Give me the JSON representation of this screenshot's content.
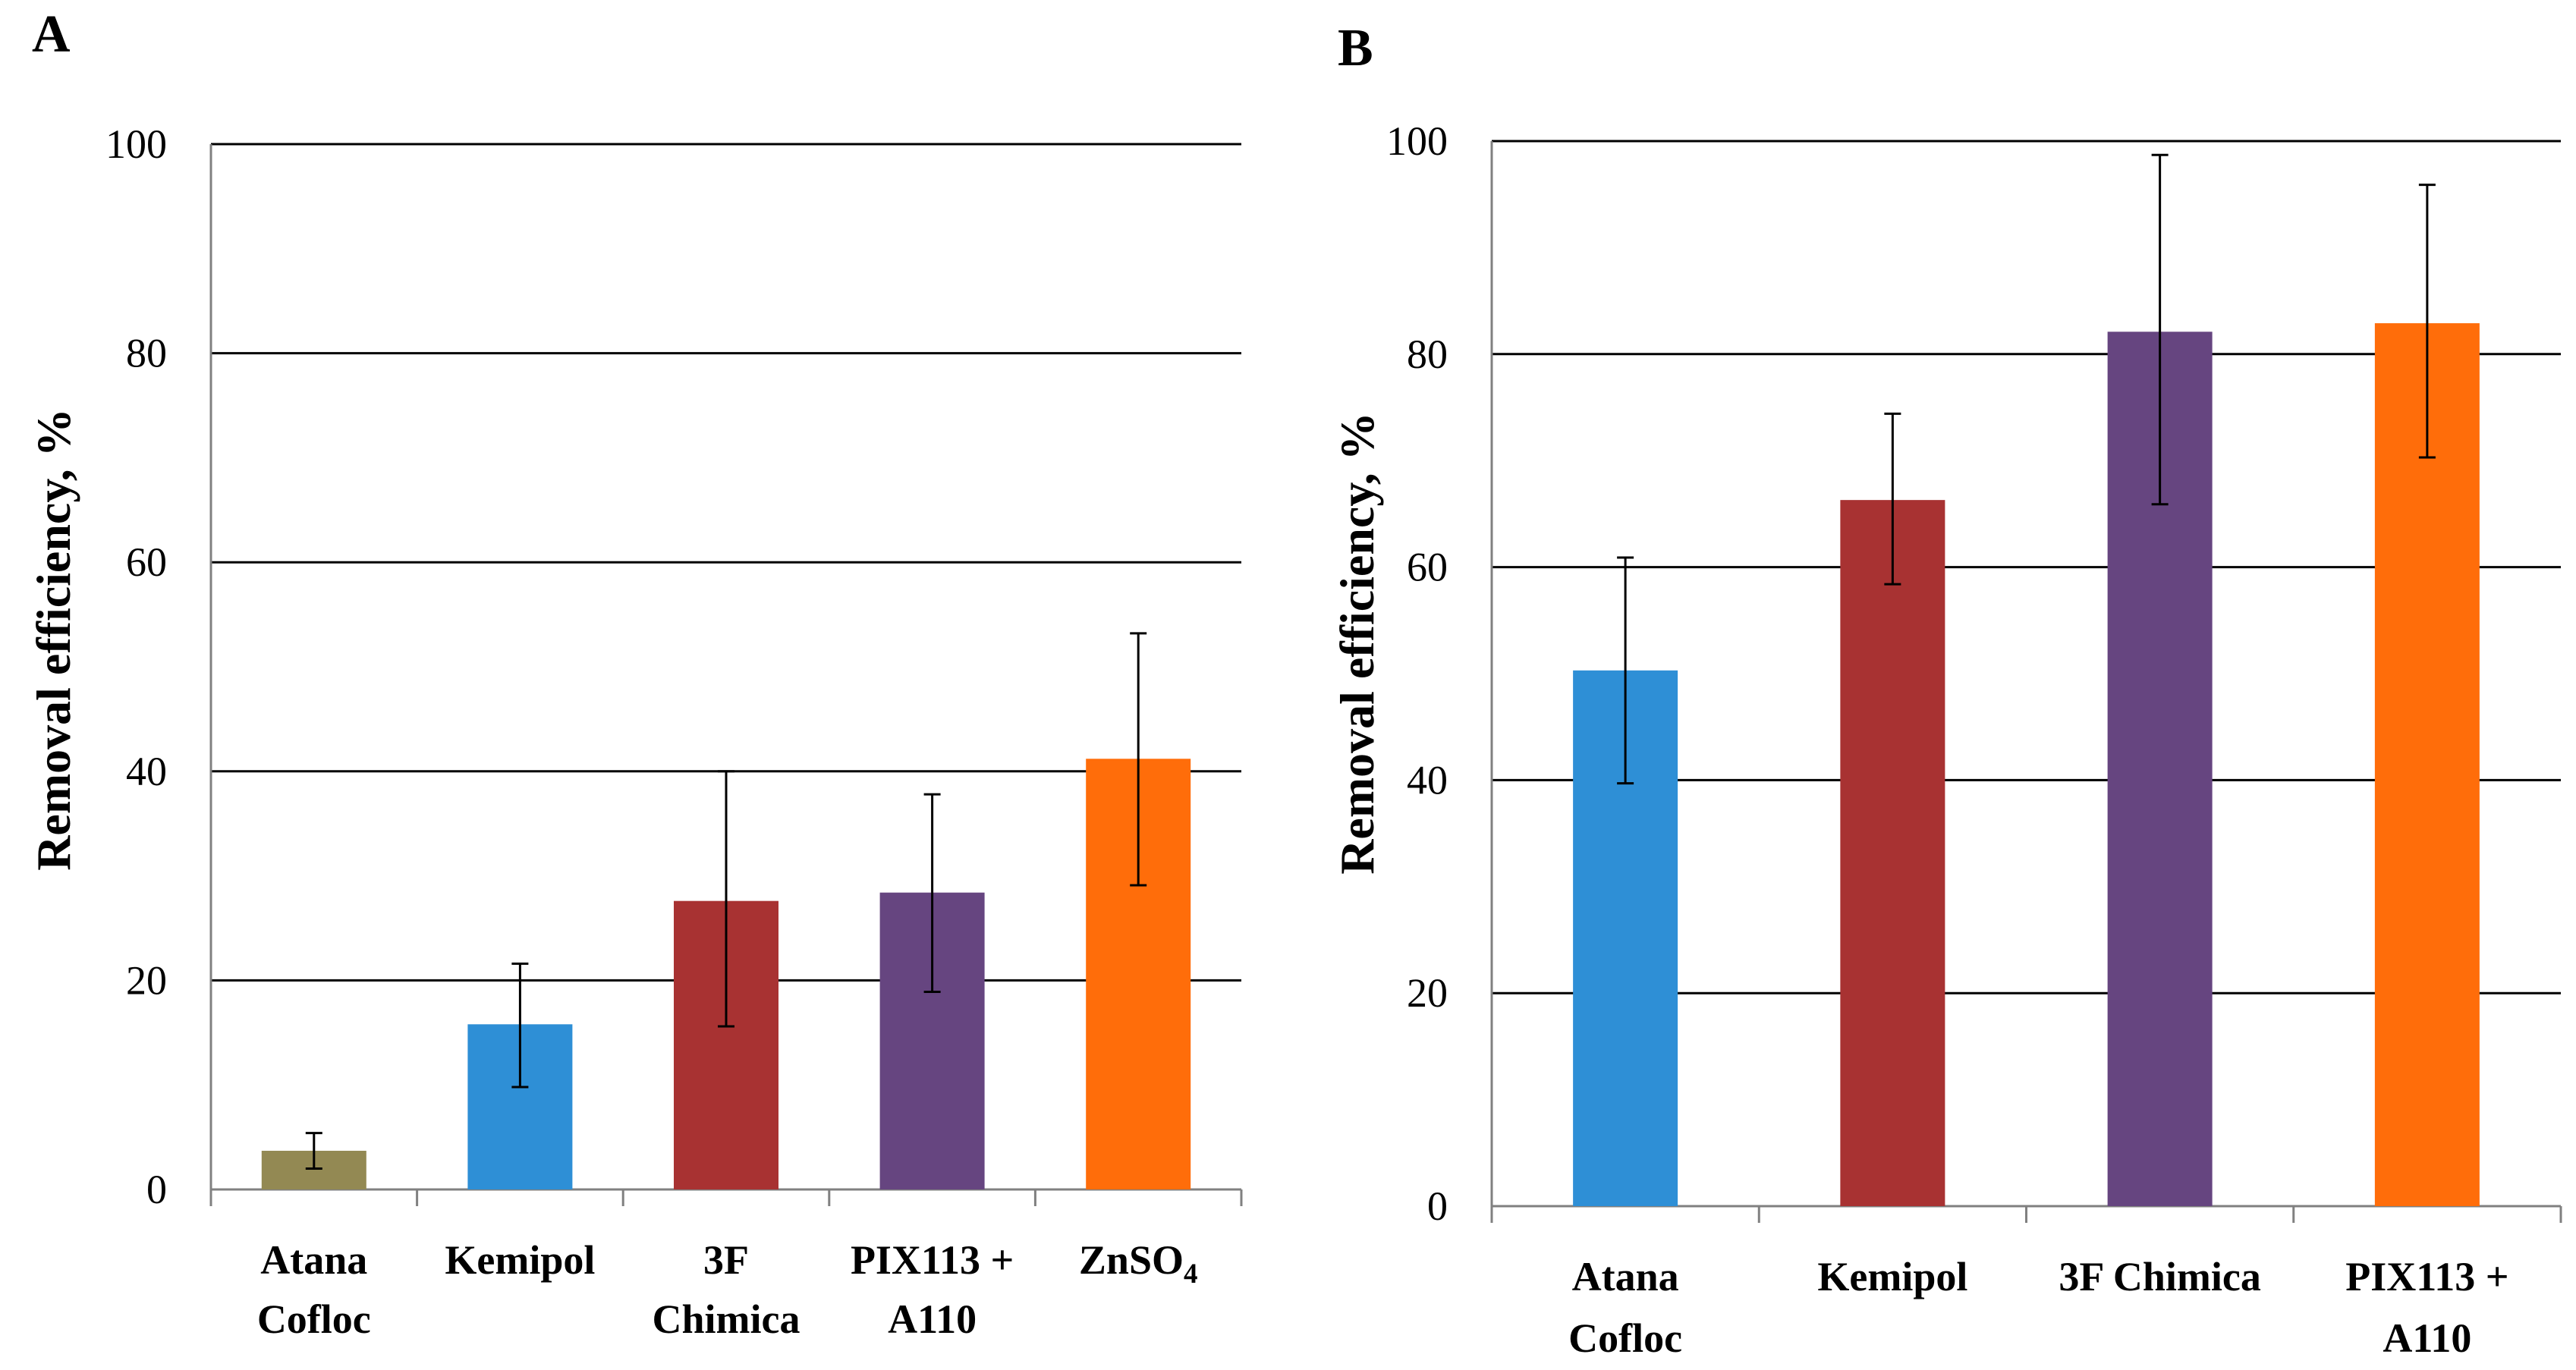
{
  "chart_data": [
    {
      "panel_label": "A",
      "type": "bar",
      "ylabel": "Removal efficiency, %",
      "ylim": [
        0,
        100
      ],
      "yticks": [
        0,
        20,
        40,
        60,
        80,
        100
      ],
      "ytick_labels": [
        "0",
        "20",
        "40",
        "60",
        "80",
        "100"
      ],
      "grid": true,
      "categories": [
        {
          "lines": [
            "Atana",
            "Cofloc"
          ]
        },
        {
          "lines": [
            "Kemipol"
          ]
        },
        {
          "lines": [
            "3F",
            "Chimica"
          ]
        },
        {
          "lines": [
            "PIX113 +",
            "A110"
          ]
        },
        {
          "lines": [
            "ZnSO",
            "4"
          ],
          "subscript_last": true
        }
      ],
      "values": [
        3.7,
        15.8,
        27.6,
        28.4,
        41.2
      ],
      "error_low": [
        2.0,
        9.8,
        15.6,
        18.9,
        29.1
      ],
      "error_high": [
        5.4,
        21.6,
        40.0,
        37.8,
        53.2
      ],
      "colors": [
        "#938953",
        "#2e8fd6",
        "#a83232",
        "#664580",
        "#ff6d0a"
      ]
    },
    {
      "panel_label": "B",
      "type": "bar",
      "ylabel": "Removal efficiency, %",
      "ylim": [
        0,
        100
      ],
      "yticks": [
        0,
        20,
        40,
        60,
        80,
        100
      ],
      "ytick_labels": [
        "0",
        "20",
        "40",
        "60",
        "80",
        "100"
      ],
      "grid": true,
      "categories": [
        {
          "lines": [
            "Atana",
            "Cofloc"
          ]
        },
        {
          "lines": [
            "Kemipol"
          ]
        },
        {
          "lines": [
            "3F Chimica"
          ]
        },
        {
          "lines": [
            "PIX113 +",
            "A110"
          ]
        }
      ],
      "values": [
        50.3,
        66.3,
        82.1,
        82.9
      ],
      "error_low": [
        39.7,
        58.4,
        65.9,
        70.3
      ],
      "error_high": [
        60.9,
        74.4,
        98.7,
        95.9
      ],
      "colors": [
        "#2e8fd6",
        "#a83232",
        "#664580",
        "#ff6d0a"
      ]
    }
  ]
}
